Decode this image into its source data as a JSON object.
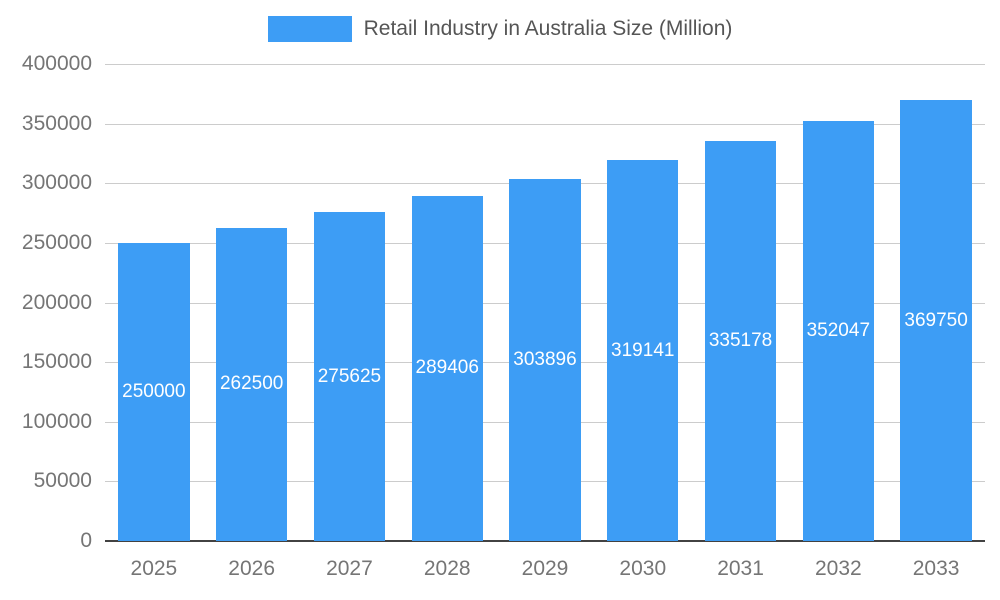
{
  "chart_data": {
    "type": "bar",
    "title": "Retail Industry in Australia Size (Million)",
    "categories": [
      "2025",
      "2026",
      "2027",
      "2028",
      "2029",
      "2030",
      "2031",
      "2032",
      "2033"
    ],
    "values": [
      250000,
      262500,
      275625,
      289406,
      303896,
      319141,
      335178,
      352047,
      369750
    ],
    "value_labels": [
      "250000",
      "262500",
      "275625",
      "289406",
      "303896",
      "319141",
      "335178",
      "352047",
      "369750"
    ],
    "xlabel": "",
    "ylabel": "",
    "ylim": [
      0,
      400000
    ],
    "yticks": [
      0,
      50000,
      100000,
      150000,
      200000,
      250000,
      300000,
      350000,
      400000
    ],
    "ytick_labels": [
      "0",
      "50000",
      "100000",
      "150000",
      "200000",
      "250000",
      "300000",
      "350000",
      "400000"
    ],
    "grid": true,
    "legend_position": "top-center",
    "bar_color": "#3d9df5",
    "value_label_color": "#ffffff",
    "axis_text_color": "#757575",
    "gridline_color": "#cccccc",
    "baseline_color": "#424242",
    "title_color": "#555555"
  }
}
